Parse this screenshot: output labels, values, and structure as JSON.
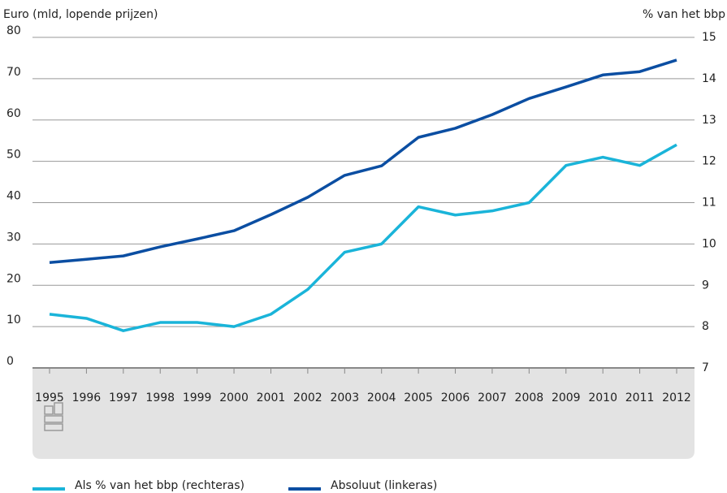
{
  "chart_data": {
    "type": "line",
    "y_label": "Euro (mld, lopende prijzen)",
    "y2_label": "% van het bbp",
    "categories": [
      "1995",
      "1996",
      "1997",
      "1998",
      "1999",
      "2000",
      "2001",
      "2002",
      "2003",
      "2004",
      "2005",
      "2006",
      "2007",
      "2008",
      "2009",
      "2010",
      "2011",
      "2012"
    ],
    "series": [
      {
        "name": "Als % van het bbp (rechteras)",
        "color": "#1ab4d9",
        "axis": "y2",
        "values": [
          8.3,
          8.2,
          7.9,
          8.1,
          8.1,
          8.0,
          8.3,
          8.9,
          9.8,
          10.0,
          10.9,
          10.7,
          10.8,
          11.0,
          11.9,
          12.1,
          11.9,
          12.4
        ]
      },
      {
        "name": "Absoluut (linkeras)",
        "color": "#0b4ea2",
        "axis": "y",
        "values": [
          25.5,
          26.3,
          27.1,
          29.3,
          31.2,
          33.2,
          37.1,
          41.3,
          46.6,
          48.9,
          55.8,
          58.0,
          61.3,
          65.2,
          68.0,
          70.9,
          71.7,
          74.5
        ]
      }
    ],
    "ylim": [
      0,
      80
    ],
    "yticks": [
      0,
      10,
      20,
      30,
      40,
      50,
      60,
      70,
      80
    ],
    "y2lim": [
      7,
      15
    ],
    "y2ticks": [
      7,
      8,
      9,
      10,
      11,
      12,
      13,
      14,
      15
    ],
    "grid": true
  }
}
